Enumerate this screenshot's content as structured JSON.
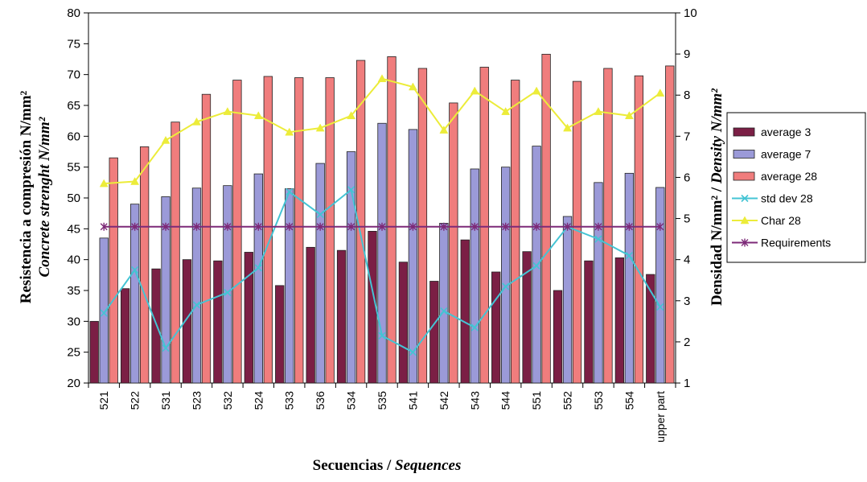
{
  "chart_data": {
    "type": "bar",
    "categories": [
      "521",
      "522",
      "531",
      "523",
      "532",
      "524",
      "533",
      "536",
      "534",
      "535",
      "541",
      "542",
      "543",
      "544",
      "551",
      "552",
      "553",
      "554",
      "upper part"
    ],
    "series": [
      {
        "name": "average 3",
        "kind": "bar",
        "axis": "left",
        "color": "#7b1f45",
        "values": [
          30.0,
          35.3,
          38.5,
          40.0,
          39.8,
          41.2,
          35.8,
          42.0,
          41.5,
          44.6,
          39.6,
          36.5,
          43.2,
          38.0,
          41.3,
          35.0,
          39.8,
          40.3,
          37.6
        ]
      },
      {
        "name": "average 7",
        "kind": "bar",
        "axis": "left",
        "color": "#9b9ad8",
        "values": [
          43.5,
          49.0,
          50.2,
          51.6,
          52.0,
          53.9,
          51.5,
          55.6,
          57.5,
          62.1,
          61.1,
          45.9,
          54.7,
          55.0,
          58.4,
          47.0,
          52.5,
          54.0,
          51.7
        ]
      },
      {
        "name": "average 28",
        "kind": "bar",
        "axis": "left",
        "color": "#f07d7d",
        "values": [
          56.5,
          58.3,
          62.3,
          66.8,
          69.1,
          69.7,
          69.5,
          69.5,
          72.3,
          72.9,
          71.0,
          65.4,
          71.2,
          69.1,
          73.3,
          68.9,
          71.0,
          69.8,
          71.4
        ]
      },
      {
        "name": "std dev 28",
        "kind": "line",
        "axis": "right",
        "color": "#44c4d4",
        "marker": "x",
        "values": [
          2.7,
          3.75,
          1.85,
          2.9,
          3.2,
          3.8,
          5.65,
          5.1,
          5.7,
          2.15,
          1.75,
          2.75,
          2.35,
          3.35,
          3.85,
          4.8,
          4.5,
          4.1,
          2.85
        ]
      },
      {
        "name": "Char 28",
        "kind": "line",
        "axis": "right",
        "color": "#ecec3a",
        "marker": "triangle",
        "values": [
          5.85,
          5.9,
          6.9,
          7.35,
          7.6,
          7.5,
          7.1,
          7.2,
          7.5,
          8.4,
          8.2,
          7.15,
          8.1,
          7.6,
          8.1,
          7.2,
          7.6,
          7.5,
          8.05
        ]
      },
      {
        "name": "Requirements",
        "kind": "line",
        "axis": "right",
        "color": "#7d2a78",
        "marker": "star",
        "values": [
          4.8,
          4.8,
          4.8,
          4.8,
          4.8,
          4.8,
          4.8,
          4.8,
          4.8,
          4.8,
          4.8,
          4.8,
          4.8,
          4.8,
          4.8,
          4.8,
          4.8,
          4.8,
          4.8
        ]
      }
    ],
    "ylim": [
      20,
      80
    ],
    "yticks": [
      "20",
      "25",
      "30",
      "35",
      "40",
      "45",
      "50",
      "55",
      "60",
      "65",
      "70",
      "75",
      "80"
    ],
    "y2lim": [
      1,
      10
    ],
    "y2ticks": [
      "1",
      "2",
      "3",
      "4",
      "5",
      "6",
      "7",
      "8",
      "9",
      "10"
    ],
    "xlabel": "Secuencias / ",
    "xlabel_italic": "Sequences",
    "ylabel_line1": "Resistencia a compresión N/mm²",
    "ylabel_line2": "Concrete strenght N/mm²",
    "y2label": "Densidad N/mm² / ",
    "y2label_italic": "Density N/mm²",
    "legend_position": "right",
    "grid": false
  }
}
